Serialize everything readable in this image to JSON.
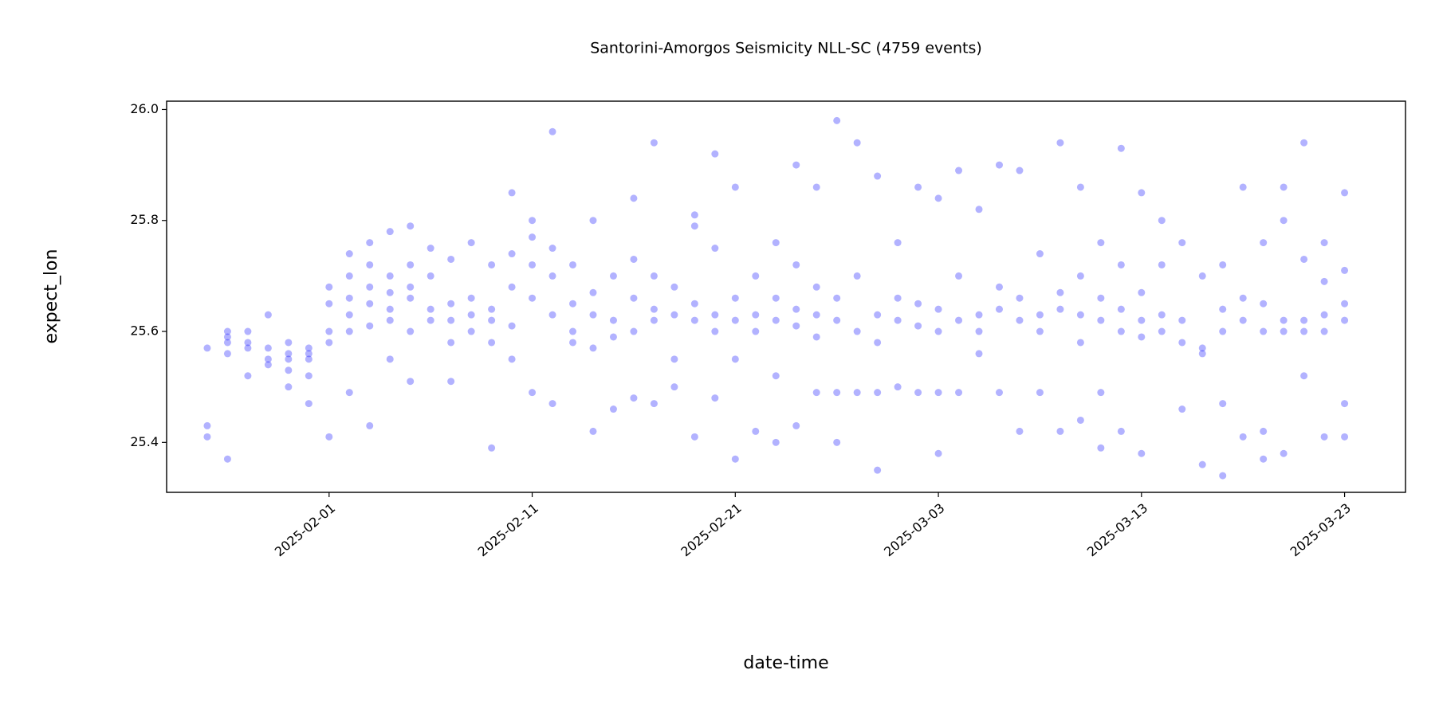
{
  "chart_data": {
    "type": "scatter",
    "title": "Santorini-Amorgos Seismicity NLL-SC (4759 events)",
    "xlabel": "date-time",
    "ylabel": "expect_lon",
    "color": "#0000ff",
    "alpha": 0.3,
    "xlim": [
      "2025-01-24",
      "2025-03-26"
    ],
    "xticks": [
      "2025-02-01",
      "2025-02-11",
      "2025-02-21",
      "2025-03-03",
      "2025-03-13",
      "2025-03-23"
    ],
    "ylim": [
      25.31,
      26.015
    ],
    "yticks": [
      25.4,
      25.6,
      25.8,
      {
        "value": 26.0,
        "label": "26.0"
      }
    ],
    "x": [
      "2025-01-26",
      "2025-01-26",
      "2025-01-26",
      "2025-01-27",
      "2025-01-27",
      "2025-01-27",
      "2025-01-27",
      "2025-01-27",
      "2025-01-28",
      "2025-01-28",
      "2025-01-28",
      "2025-01-28",
      "2025-01-29",
      "2025-01-29",
      "2025-01-29",
      "2025-01-29",
      "2025-01-30",
      "2025-01-30",
      "2025-01-30",
      "2025-01-30",
      "2025-01-30",
      "2025-01-31",
      "2025-01-31",
      "2025-01-31",
      "2025-01-31",
      "2025-01-31",
      "2025-02-01",
      "2025-02-01",
      "2025-02-01",
      "2025-02-01",
      "2025-02-01",
      "2025-02-02",
      "2025-02-02",
      "2025-02-02",
      "2025-02-02",
      "2025-02-02",
      "2025-02-02",
      "2025-02-03",
      "2025-02-03",
      "2025-02-03",
      "2025-02-03",
      "2025-02-03",
      "2025-02-03",
      "2025-02-04",
      "2025-02-04",
      "2025-02-04",
      "2025-02-04",
      "2025-02-04",
      "2025-02-04",
      "2025-02-05",
      "2025-02-05",
      "2025-02-05",
      "2025-02-05",
      "2025-02-05",
      "2025-02-05",
      "2025-02-06",
      "2025-02-06",
      "2025-02-06",
      "2025-02-06",
      "2025-02-07",
      "2025-02-07",
      "2025-02-07",
      "2025-02-07",
      "2025-02-07",
      "2025-02-08",
      "2025-02-08",
      "2025-02-08",
      "2025-02-08",
      "2025-02-09",
      "2025-02-09",
      "2025-02-09",
      "2025-02-09",
      "2025-02-09",
      "2025-02-10",
      "2025-02-10",
      "2025-02-10",
      "2025-02-10",
      "2025-02-10",
      "2025-02-11",
      "2025-02-11",
      "2025-02-11",
      "2025-02-11",
      "2025-02-11",
      "2025-02-12",
      "2025-02-12",
      "2025-02-12",
      "2025-02-12",
      "2025-02-12",
      "2025-02-13",
      "2025-02-13",
      "2025-02-13",
      "2025-02-13",
      "2025-02-14",
      "2025-02-14",
      "2025-02-14",
      "2025-02-14",
      "2025-02-14",
      "2025-02-15",
      "2025-02-15",
      "2025-02-15",
      "2025-02-15",
      "2025-02-16",
      "2025-02-16",
      "2025-02-16",
      "2025-02-16",
      "2025-02-16",
      "2025-02-17",
      "2025-02-17",
      "2025-02-17",
      "2025-02-17",
      "2025-02-17",
      "2025-02-18",
      "2025-02-18",
      "2025-02-18",
      "2025-02-18",
      "2025-02-19",
      "2025-02-19",
      "2025-02-19",
      "2025-02-19",
      "2025-02-19",
      "2025-02-20",
      "2025-02-20",
      "2025-02-20",
      "2025-02-20",
      "2025-02-20",
      "2025-02-21",
      "2025-02-21",
      "2025-02-21",
      "2025-02-21",
      "2025-02-21",
      "2025-02-22",
      "2025-02-22",
      "2025-02-22",
      "2025-02-22",
      "2025-02-23",
      "2025-02-23",
      "2025-02-23",
      "2025-02-23",
      "2025-02-23",
      "2025-02-24",
      "2025-02-24",
      "2025-02-24",
      "2025-02-24",
      "2025-02-24",
      "2025-02-25",
      "2025-02-25",
      "2025-02-25",
      "2025-02-25",
      "2025-02-25",
      "2025-02-26",
      "2025-02-26",
      "2025-02-26",
      "2025-02-26",
      "2025-02-26",
      "2025-02-27",
      "2025-02-27",
      "2025-02-27",
      "2025-02-27",
      "2025-02-28",
      "2025-02-28",
      "2025-02-28",
      "2025-02-28",
      "2025-02-28",
      "2025-03-01",
      "2025-03-01",
      "2025-03-01",
      "2025-03-01",
      "2025-03-02",
      "2025-03-02",
      "2025-03-02",
      "2025-03-02",
      "2025-03-03",
      "2025-03-03",
      "2025-03-03",
      "2025-03-03",
      "2025-03-03",
      "2025-03-04",
      "2025-03-04",
      "2025-03-04",
      "2025-03-04",
      "2025-03-05",
      "2025-03-05",
      "2025-03-05",
      "2025-03-05",
      "2025-03-06",
      "2025-03-06",
      "2025-03-06",
      "2025-03-06",
      "2025-03-07",
      "2025-03-07",
      "2025-03-07",
      "2025-03-07",
      "2025-03-08",
      "2025-03-08",
      "2025-03-08",
      "2025-03-08",
      "2025-03-09",
      "2025-03-09",
      "2025-03-09",
      "2025-03-09",
      "2025-03-10",
      "2025-03-10",
      "2025-03-10",
      "2025-03-10",
      "2025-03-10",
      "2025-03-11",
      "2025-03-11",
      "2025-03-11",
      "2025-03-11",
      "2025-03-11",
      "2025-03-12",
      "2025-03-12",
      "2025-03-12",
      "2025-03-12",
      "2025-03-12",
      "2025-03-13",
      "2025-03-13",
      "2025-03-13",
      "2025-03-13",
      "2025-03-13",
      "2025-03-14",
      "2025-03-14",
      "2025-03-14",
      "2025-03-14",
      "2025-03-15",
      "2025-03-15",
      "2025-03-15",
      "2025-03-15",
      "2025-03-16",
      "2025-03-16",
      "2025-03-16",
      "2025-03-16",
      "2025-03-17",
      "2025-03-17",
      "2025-03-17",
      "2025-03-17",
      "2025-03-17",
      "2025-03-18",
      "2025-03-18",
      "2025-03-18",
      "2025-03-18",
      "2025-03-19",
      "2025-03-19",
      "2025-03-19",
      "2025-03-19",
      "2025-03-19",
      "2025-03-20",
      "2025-03-20",
      "2025-03-20",
      "2025-03-20",
      "2025-03-20",
      "2025-03-21",
      "2025-03-21",
      "2025-03-21",
      "2025-03-21",
      "2025-03-21",
      "2025-03-22",
      "2025-03-22",
      "2025-03-22",
      "2025-03-22",
      "2025-03-22",
      "2025-03-23",
      "2025-03-23",
      "2025-03-23",
      "2025-03-23",
      "2025-03-23",
      "2025-03-23"
    ],
    "values": [
      25.57,
      25.43,
      25.41,
      25.56,
      25.59,
      25.6,
      25.37,
      25.58,
      25.58,
      25.6,
      25.52,
      25.57,
      25.55,
      25.54,
      25.63,
      25.57,
      25.56,
      25.55,
      25.5,
      25.53,
      25.58,
      25.55,
      25.57,
      25.52,
      25.56,
      25.47,
      25.58,
      25.6,
      25.41,
      25.65,
      25.68,
      25.63,
      25.49,
      25.66,
      25.7,
      25.74,
      25.6,
      25.65,
      25.68,
      25.72,
      25.61,
      25.43,
      25.76,
      25.67,
      25.7,
      25.78,
      25.64,
      25.62,
      25.55,
      25.68,
      25.72,
      25.66,
      25.79,
      25.6,
      25.51,
      25.7,
      25.75,
      25.64,
      25.62,
      25.65,
      25.62,
      25.58,
      25.73,
      25.51,
      25.63,
      25.6,
      25.76,
      25.66,
      25.62,
      25.64,
      25.72,
      25.58,
      25.39,
      25.68,
      25.74,
      25.61,
      25.85,
      25.55,
      25.72,
      25.77,
      25.8,
      25.66,
      25.49,
      25.75,
      25.7,
      25.96,
      25.63,
      25.47,
      25.65,
      25.6,
      25.72,
      25.58,
      25.63,
      25.67,
      25.8,
      25.42,
      25.57,
      25.62,
      25.59,
      25.7,
      25.46,
      25.6,
      25.66,
      25.73,
      25.84,
      25.48,
      25.62,
      25.64,
      25.7,
      25.94,
      25.47,
      25.63,
      25.68,
      25.55,
      25.5,
      25.79,
      25.81,
      25.62,
      25.41,
      25.65,
      25.63,
      25.6,
      25.75,
      25.92,
      25.48,
      25.62,
      25.66,
      25.86,
      25.37,
      25.55,
      25.63,
      25.6,
      25.7,
      25.42,
      25.62,
      25.66,
      25.76,
      25.4,
      25.52,
      25.61,
      25.64,
      25.9,
      25.43,
      25.72,
      25.63,
      25.59,
      25.49,
      25.86,
      25.68,
      25.62,
      25.66,
      25.98,
      25.49,
      25.4,
      25.6,
      25.7,
      25.94,
      25.49,
      25.63,
      25.58,
      25.35,
      25.49,
      25.88,
      25.62,
      25.66,
      25.5,
      25.76,
      25.61,
      25.65,
      25.49,
      25.86,
      25.64,
      25.6,
      25.84,
      25.49,
      25.38,
      25.62,
      25.7,
      25.89,
      25.49,
      25.63,
      25.6,
      25.82,
      25.56,
      25.64,
      25.68,
      25.9,
      25.49,
      25.62,
      25.66,
      25.89,
      25.42,
      25.63,
      25.6,
      25.74,
      25.49,
      25.64,
      25.67,
      25.94,
      25.42,
      25.63,
      25.7,
      25.86,
      25.44,
      25.58,
      25.62,
      25.66,
      25.76,
      25.39,
      25.49,
      25.64,
      25.6,
      25.93,
      25.42,
      25.72,
      25.62,
      25.67,
      25.85,
      25.38,
      25.59,
      25.63,
      25.6,
      25.72,
      25.8,
      25.62,
      25.58,
      25.46,
      25.76,
      25.57,
      25.56,
      25.7,
      25.36,
      25.64,
      25.6,
      25.72,
      25.34,
      25.47,
      25.62,
      25.66,
      25.86,
      25.41,
      25.6,
      25.65,
      25.76,
      25.37,
      25.42,
      25.62,
      25.6,
      25.86,
      25.38,
      25.8,
      25.6,
      25.62,
      25.94,
      25.52,
      25.73,
      25.63,
      25.6,
      25.76,
      25.41,
      25.69,
      25.62,
      25.65,
      25.85,
      25.41,
      25.71,
      25.47
    ]
  }
}
